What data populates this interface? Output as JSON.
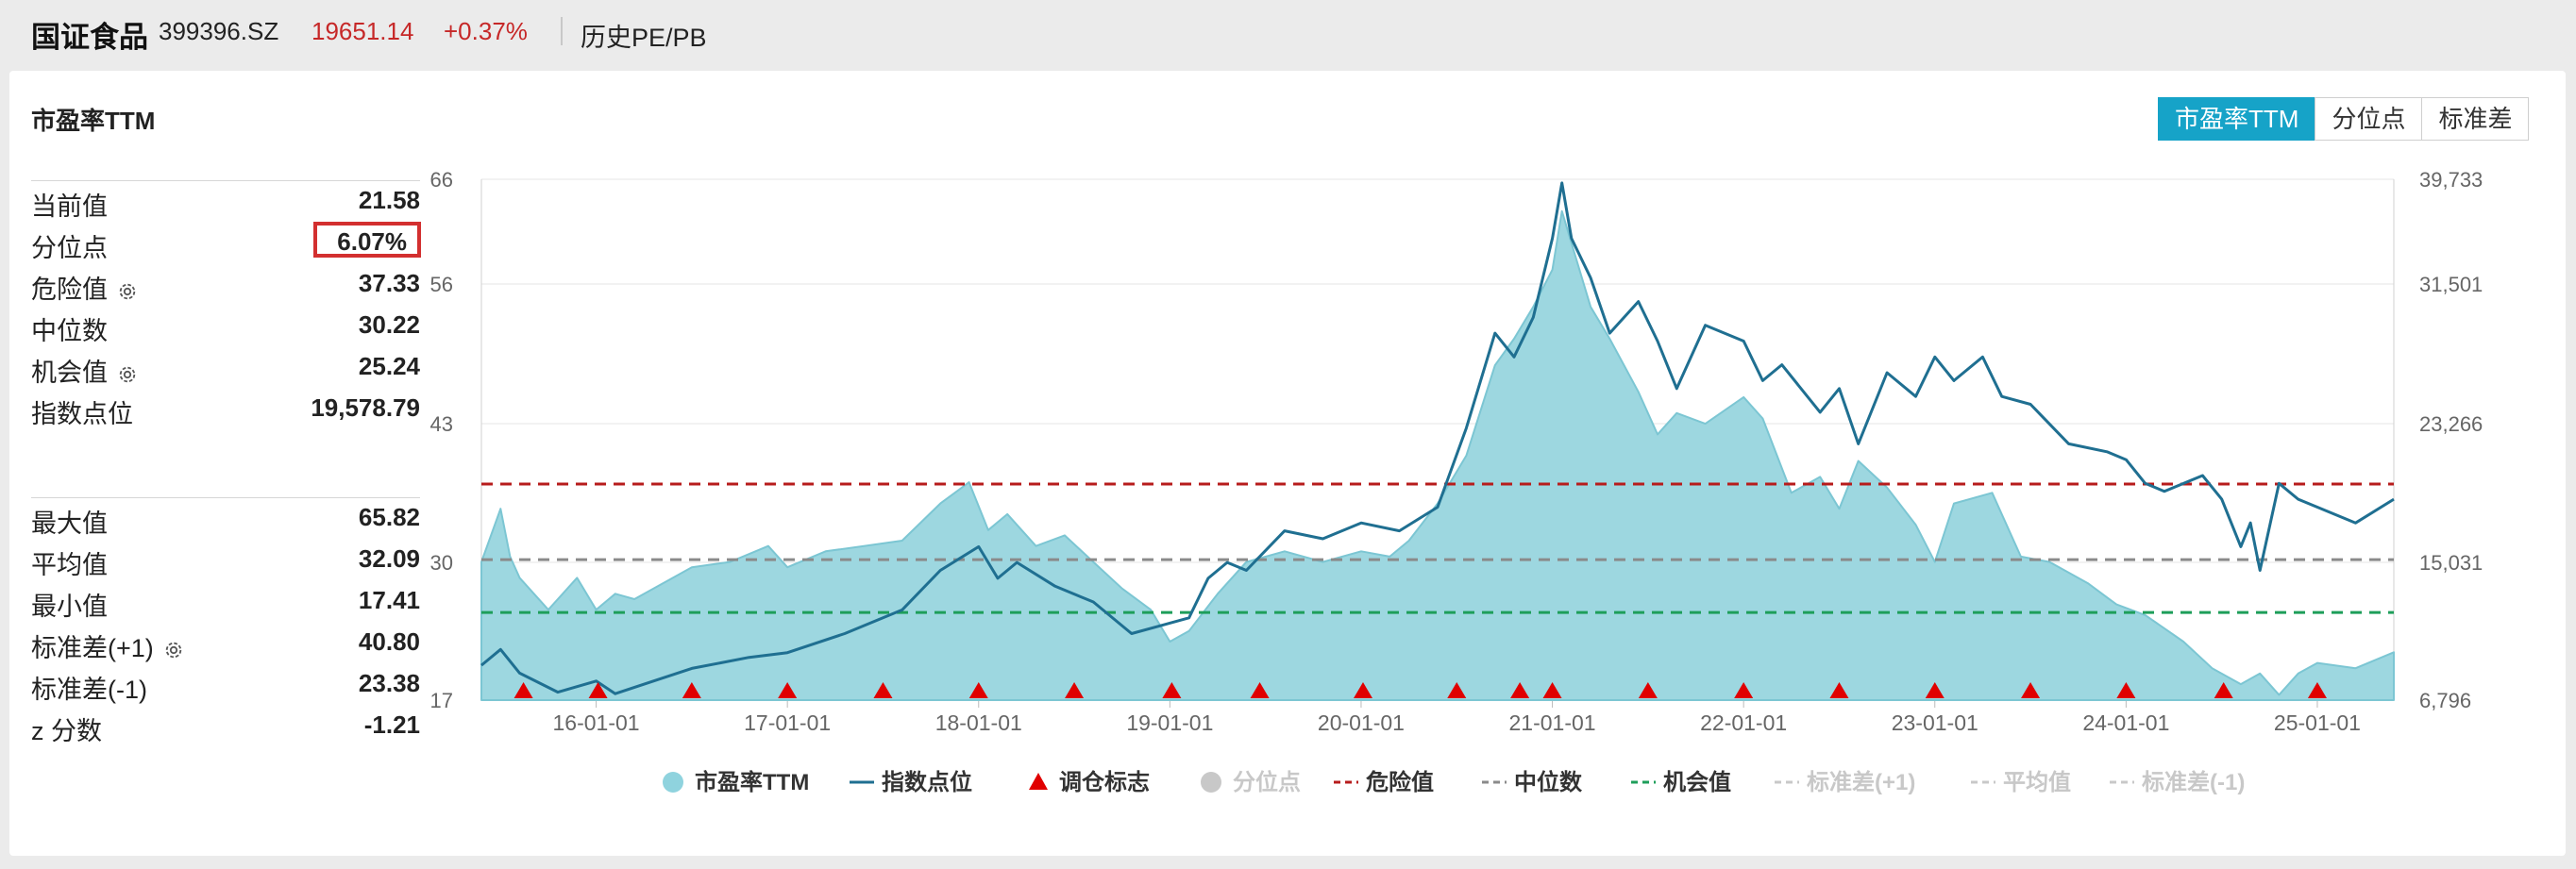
{
  "header": {
    "name": "国证食品",
    "code": "399396.SZ",
    "price": "19651.14",
    "change": "+0.37%",
    "history_label": "历史PE/PB"
  },
  "card": {
    "title": "市盈率TTM"
  },
  "tabs": [
    {
      "label": "市盈率TTM",
      "active": true
    },
    {
      "label": "分位点",
      "active": false
    },
    {
      "label": "标准差",
      "active": false
    }
  ],
  "stats_top": [
    {
      "label": "当前值",
      "value": "21.58"
    },
    {
      "label": "分位点",
      "value": "6.07%"
    },
    {
      "label": "危险值",
      "value": "37.33",
      "gear": true
    },
    {
      "label": "中位数",
      "value": "30.22"
    },
    {
      "label": "机会值",
      "value": "25.24",
      "gear": true
    },
    {
      "label": "指数点位",
      "value": "19,578.79"
    }
  ],
  "stats_bottom": [
    {
      "label": "最大值",
      "value": "65.82"
    },
    {
      "label": "平均值",
      "value": "32.09"
    },
    {
      "label": "最小值",
      "value": "17.41"
    },
    {
      "label": "标准差(+1)",
      "value": "40.80",
      "gear": true
    },
    {
      "label": "标准差(-1)",
      "value": "23.38"
    },
    {
      "label": "z 分数",
      "value": "-1.21"
    }
  ],
  "colors": {
    "pe_fill": "#9dd7e0",
    "pe_line": "#7cc6d3",
    "index_line": "#1f6f91",
    "marker": "#e00000",
    "danger": "#b71c1c",
    "median": "#8a8a8a",
    "opportunity": "#1e9e5a",
    "disabled": "#c8c8c8"
  },
  "chart_data": {
    "type": "area",
    "x_ticks": [
      "16-01-01",
      "17-01-01",
      "18-01-01",
      "19-01-01",
      "20-01-01",
      "21-01-01",
      "22-01-01",
      "23-01-01",
      "24-01-01",
      "25-01-01"
    ],
    "y_left_ticks": [
      "66",
      "56",
      "43",
      "30",
      "17"
    ],
    "y_right_ticks": [
      "39,733",
      "31,501",
      "23,266",
      "15,031",
      "6,796"
    ],
    "ylim_left": [
      17,
      66
    ],
    "ylim_right": [
      6796,
      39733
    ],
    "x_range": [
      2015.4,
      2025.4
    ],
    "reference_lines": {
      "danger": 37.33,
      "median": 30.22,
      "opportunity": 25.24
    },
    "series": [
      {
        "name": "市盈率TTM",
        "x": [
          2015.4,
          2015.5,
          2015.55,
          2015.6,
          2015.75,
          2015.9,
          2016.0,
          2016.1,
          2016.2,
          2016.35,
          2016.5,
          2016.7,
          2016.9,
          2017.0,
          2017.2,
          2017.4,
          2017.6,
          2017.8,
          2017.95,
          2018.05,
          2018.15,
          2018.3,
          2018.45,
          2018.6,
          2018.75,
          2018.9,
          2019.0,
          2019.1,
          2019.25,
          2019.4,
          2019.6,
          2019.8,
          2020.0,
          2020.15,
          2020.25,
          2020.4,
          2020.55,
          2020.7,
          2020.8,
          2020.9,
          2021.0,
          2021.05,
          2021.1,
          2021.2,
          2021.3,
          2021.45,
          2021.55,
          2021.65,
          2021.8,
          2022.0,
          2022.1,
          2022.25,
          2022.4,
          2022.5,
          2022.6,
          2022.75,
          2022.9,
          2023.0,
          2023.1,
          2023.3,
          2023.45,
          2023.6,
          2023.8,
          2023.95,
          2024.1,
          2024.3,
          2024.45,
          2024.6,
          2024.7,
          2024.8,
          2024.9,
          2025.0,
          2025.2,
          2025.4
        ],
        "values": [
          30.0,
          35.0,
          30.5,
          28.5,
          25.5,
          28.5,
          25.5,
          27.0,
          26.5,
          28.0,
          29.5,
          30.0,
          31.5,
          29.5,
          31.0,
          31.5,
          32.0,
          35.5,
          37.5,
          33.0,
          34.5,
          31.5,
          32.5,
          30.0,
          27.5,
          25.5,
          22.5,
          23.5,
          27.0,
          30.0,
          31.0,
          30.0,
          31.0,
          30.5,
          32.0,
          35.5,
          40.0,
          48.5,
          51.0,
          54.0,
          57.5,
          63.0,
          60.0,
          54.0,
          51.0,
          46.0,
          42.0,
          44.0,
          43.0,
          45.5,
          43.5,
          36.5,
          38.0,
          35.0,
          39.5,
          37.0,
          33.5,
          30.0,
          35.5,
          36.5,
          30.5,
          30.0,
          28.0,
          26.0,
          25.0,
          22.5,
          20.0,
          18.5,
          19.5,
          17.5,
          19.5,
          20.5,
          20.0,
          21.5
        ]
      },
      {
        "name": "指数点位",
        "x": [
          2015.4,
          2015.5,
          2015.6,
          2015.8,
          2016.0,
          2016.1,
          2016.3,
          2016.5,
          2016.8,
          2017.0,
          2017.3,
          2017.6,
          2017.8,
          2018.0,
          2018.1,
          2018.2,
          2018.4,
          2018.6,
          2018.8,
          2018.95,
          2019.1,
          2019.2,
          2019.3,
          2019.4,
          2019.6,
          2019.8,
          2020.0,
          2020.2,
          2020.4,
          2020.55,
          2020.7,
          2020.8,
          2020.9,
          2021.0,
          2021.05,
          2021.1,
          2021.2,
          2021.3,
          2021.45,
          2021.55,
          2021.65,
          2021.8,
          2022.0,
          2022.1,
          2022.2,
          2022.4,
          2022.5,
          2022.6,
          2022.75,
          2022.9,
          2023.0,
          2023.1,
          2023.25,
          2023.35,
          2023.5,
          2023.7,
          2023.9,
          2024.0,
          2024.1,
          2024.2,
          2024.4,
          2024.5,
          2024.6,
          2024.65,
          2024.7,
          2024.8,
          2024.9,
          2025.0,
          2025.2,
          2025.4
        ],
        "values": [
          9000,
          10000,
          8500,
          7300,
          8000,
          7200,
          8000,
          8800,
          9500,
          9800,
          11000,
          12500,
          15000,
          16500,
          14500,
          15500,
          14000,
          13000,
          11000,
          11500,
          12000,
          14500,
          15500,
          15000,
          17500,
          17000,
          18000,
          17500,
          19000,
          24000,
          30000,
          28500,
          31000,
          36000,
          39500,
          36000,
          33500,
          30000,
          32000,
          29500,
          26500,
          30500,
          29500,
          27000,
          28000,
          25000,
          26500,
          23000,
          27500,
          26000,
          28500,
          27000,
          28500,
          26000,
          25500,
          23000,
          22500,
          22000,
          20500,
          20000,
          21000,
          19500,
          16500,
          18000,
          15000,
          20500,
          19500,
          19000,
          18000,
          19500
        ]
      }
    ],
    "adjustment_markers_x": [
      2015.62,
      2016.01,
      2016.5,
      2017.0,
      2017.5,
      2018.0,
      2018.5,
      2019.01,
      2019.47,
      2020.01,
      2020.5,
      2020.83,
      2021.0,
      2021.5,
      2022.0,
      2022.5,
      2023.0,
      2023.5,
      2024.0,
      2024.51,
      2025.0
    ],
    "legend": [
      {
        "label": "市盈率TTM",
        "kind": "dot",
        "color": "#8fd3de",
        "active": true
      },
      {
        "label": "指数点位",
        "kind": "line",
        "color": "#1f6f91",
        "active": true
      },
      {
        "label": "调仓标志",
        "kind": "triangle",
        "color": "#e00000",
        "active": true
      },
      {
        "label": "分位点",
        "kind": "dot",
        "color": "#c8c8c8",
        "active": false
      },
      {
        "label": "危险值",
        "kind": "dash",
        "color": "#b71c1c",
        "active": true
      },
      {
        "label": "中位数",
        "kind": "dash",
        "color": "#8a8a8a",
        "active": true
      },
      {
        "label": "机会值",
        "kind": "dash",
        "color": "#1e9e5a",
        "active": true
      },
      {
        "label": "标准差(+1)",
        "kind": "dash",
        "color": "#c8c8c8",
        "active": false
      },
      {
        "label": "平均值",
        "kind": "dash",
        "color": "#c8c8c8",
        "active": false
      },
      {
        "label": "标准差(-1)",
        "kind": "dash",
        "color": "#c8c8c8",
        "active": false
      }
    ]
  }
}
